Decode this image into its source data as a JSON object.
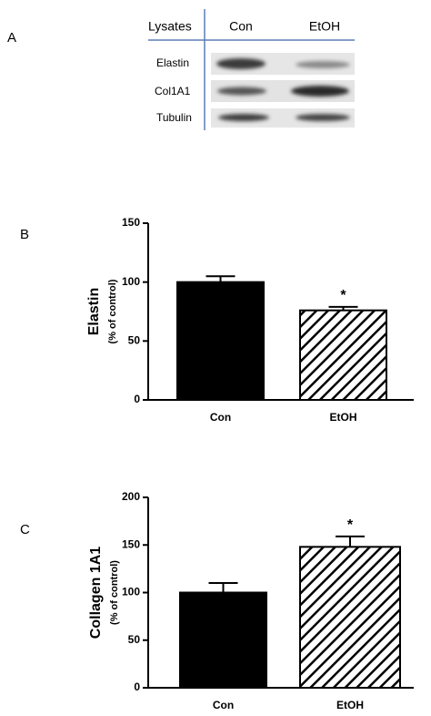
{
  "blot": {
    "label": "A",
    "header": "Lysates",
    "lanes": [
      "Con",
      "EtOH"
    ],
    "rows": [
      "Elastin",
      "Col1A1",
      "Tubulin"
    ]
  },
  "chart_data": [
    {
      "type": "bar",
      "panel": "B",
      "ylabel": "Elastin",
      "ylabel_sub": "(% of control)",
      "categories": [
        "Con",
        "EtOH"
      ],
      "values": [
        100,
        76
      ],
      "errors": [
        5,
        3
      ],
      "patterns": [
        "solid",
        "hatch"
      ],
      "color": "#000000",
      "significance": [
        null,
        "*"
      ],
      "ylim": [
        0,
        150
      ],
      "yticks": [
        0,
        50,
        100,
        150
      ],
      "grid": false
    },
    {
      "type": "bar",
      "panel": "C",
      "ylabel": "Collagen 1A1",
      "ylabel_sub": "(% of control)",
      "categories": [
        "Con",
        "EtOH"
      ],
      "values": [
        100,
        148
      ],
      "errors": [
        10,
        11
      ],
      "patterns": [
        "solid",
        "hatch"
      ],
      "color": "#000000",
      "significance": [
        null,
        "*"
      ],
      "ylim": [
        0,
        200
      ],
      "yticks": [
        0,
        50,
        100,
        150,
        200
      ],
      "grid": false
    }
  ]
}
